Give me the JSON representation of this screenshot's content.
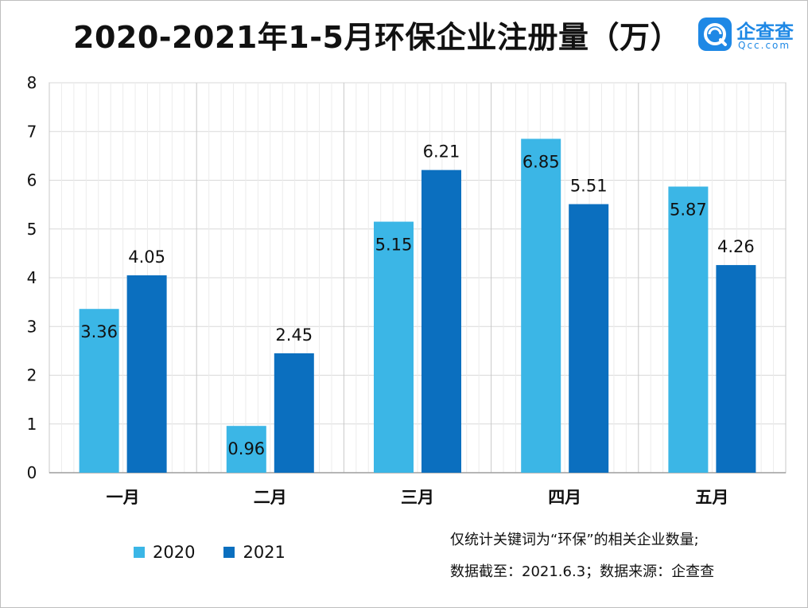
{
  "title": "2020-2021年1-5月环保企业注册量（万）",
  "logo": {
    "name": "企查查",
    "sub": "Qcc.com",
    "icon": "qcc-logo-icon"
  },
  "notes": [
    "仅统计关键词为“环保”的相关企业数量;",
    "数据截至：2021.6.3；数据来源：企查查"
  ],
  "colors": {
    "s2020": "#3bb6e6",
    "s2021": "#0b6fbf",
    "grid": "#d9d9d9"
  },
  "chart_data": {
    "type": "bar",
    "title": "2020-2021年1-5月环保企业注册量（万）",
    "categories": [
      "一月",
      "二月",
      "三月",
      "四月",
      "五月"
    ],
    "series": [
      {
        "name": "2020",
        "values": [
          3.36,
          0.96,
          5.15,
          6.85,
          5.87
        ]
      },
      {
        "name": "2021",
        "values": [
          4.05,
          2.45,
          6.21,
          5.51,
          4.26
        ]
      }
    ],
    "ylim": [
      0,
      8
    ],
    "yticks": [
      0,
      1,
      2,
      3,
      4,
      5,
      6,
      7,
      8
    ],
    "grid": true,
    "legend": "bottom-left"
  }
}
